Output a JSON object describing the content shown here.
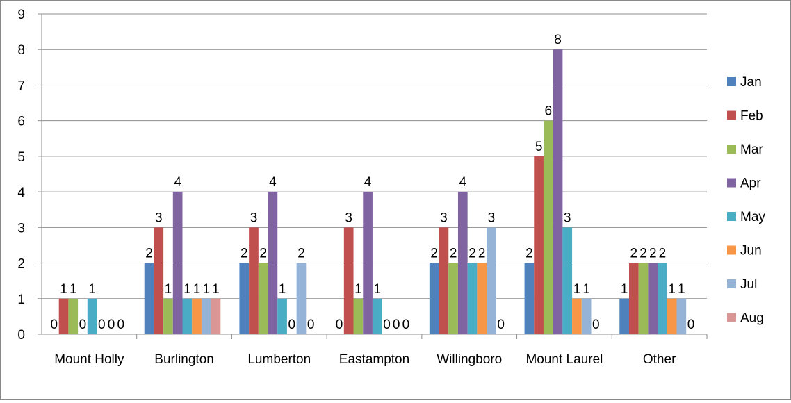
{
  "chart_data": {
    "type": "bar",
    "title": "",
    "xlabel": "",
    "ylabel": "",
    "ylim": [
      0,
      9
    ],
    "yticks": [
      "0",
      "1",
      "2",
      "3",
      "4",
      "5",
      "6",
      "7",
      "8",
      "9"
    ],
    "grid": true,
    "legend_position": "right",
    "categories": [
      "Mount Holly",
      "Burlington",
      "Lumberton",
      "Eastampton",
      "Willingboro",
      "Mount Laurel",
      "Other"
    ],
    "series": [
      {
        "name": "Jan",
        "color": "#4F81BD",
        "values": [
          0,
          2,
          2,
          0,
          2,
          2,
          1
        ]
      },
      {
        "name": "Feb",
        "color": "#C0504D",
        "values": [
          1,
          3,
          3,
          3,
          3,
          5,
          2
        ]
      },
      {
        "name": "Mar",
        "color": "#9BBB59",
        "values": [
          1,
          1,
          2,
          1,
          2,
          6,
          2
        ]
      },
      {
        "name": "Apr",
        "color": "#8064A2",
        "values": [
          0,
          4,
          4,
          4,
          4,
          8,
          2
        ]
      },
      {
        "name": "May",
        "color": "#4BACC6",
        "values": [
          1,
          1,
          1,
          1,
          2,
          3,
          2
        ]
      },
      {
        "name": "Jun",
        "color": "#F79646",
        "values": [
          0,
          1,
          0,
          0,
          2,
          1,
          1
        ]
      },
      {
        "name": "Jul",
        "color": "#95B3D7",
        "values": [
          0,
          1,
          2,
          0,
          3,
          1,
          1
        ]
      },
      {
        "name": "Aug",
        "color": "#D99694",
        "values": [
          0,
          1,
          0,
          0,
          0,
          0,
          0
        ]
      }
    ]
  }
}
